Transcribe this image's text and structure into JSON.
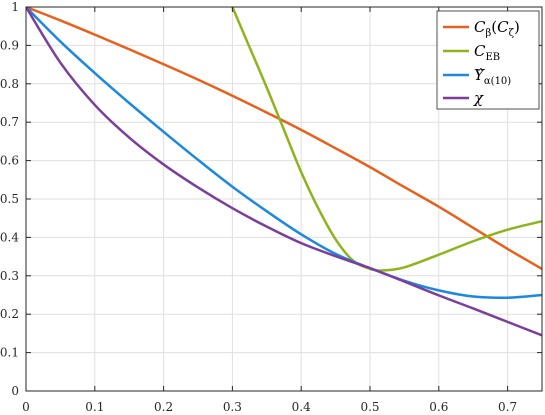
{
  "chart_data": {
    "type": "line",
    "title": "",
    "xlabel": "",
    "ylabel": "",
    "xlim": [
      0,
      0.75
    ],
    "ylim": [
      0,
      1
    ],
    "x_ticks": [
      "0",
      "0.1",
      "0.2",
      "0.3",
      "0.4",
      "0.5",
      "0.6",
      "0.7"
    ],
    "y_ticks": [
      "0",
      "0.1",
      "0.2",
      "0.3",
      "0.4",
      "0.5",
      "0.6",
      "0.7",
      "0.8",
      "0.9",
      "1"
    ],
    "grid": true,
    "legend_position": "top-right",
    "series": [
      {
        "name": "Cβ(Cζ)",
        "color": "#E8601C",
        "x": [
          0,
          0.05,
          0.1,
          0.15,
          0.2,
          0.25,
          0.3,
          0.35,
          0.4,
          0.45,
          0.5,
          0.55,
          0.6,
          0.65,
          0.7,
          0.75
        ],
        "y": [
          1.0,
          0.965,
          0.928,
          0.89,
          0.851,
          0.811,
          0.769,
          0.725,
          0.68,
          0.632,
          0.583,
          0.531,
          0.48,
          0.425,
          0.37,
          0.318
        ]
      },
      {
        "name": "CEB",
        "color": "#8DB41C",
        "x": [
          0.3,
          0.325,
          0.35,
          0.375,
          0.4,
          0.425,
          0.45,
          0.475,
          0.5,
          0.52,
          0.55,
          0.6,
          0.65,
          0.7,
          0.75
        ],
        "y": [
          1.0,
          0.895,
          0.79,
          0.68,
          0.57,
          0.475,
          0.395,
          0.34,
          0.318,
          0.314,
          0.322,
          0.355,
          0.39,
          0.42,
          0.442
        ]
      },
      {
        "name": "Υ̂α(10)",
        "color": "#1C88E0",
        "x": [
          0,
          0.05,
          0.1,
          0.15,
          0.2,
          0.25,
          0.3,
          0.35,
          0.4,
          0.45,
          0.5,
          0.55,
          0.6,
          0.65,
          0.7,
          0.75
        ],
        "y": [
          1.0,
          0.91,
          0.828,
          0.75,
          0.675,
          0.602,
          0.532,
          0.468,
          0.408,
          0.357,
          0.32,
          0.287,
          0.262,
          0.246,
          0.243,
          0.25
        ]
      },
      {
        "name": "χ",
        "color": "#7A3F9D",
        "x": [
          0,
          0.05,
          0.1,
          0.15,
          0.2,
          0.25,
          0.3,
          0.35,
          0.4,
          0.45,
          0.5,
          0.55,
          0.6,
          0.65,
          0.7,
          0.75
        ],
        "y": [
          1.0,
          0.855,
          0.745,
          0.66,
          0.59,
          0.53,
          0.476,
          0.428,
          0.385,
          0.351,
          0.32,
          0.285,
          0.249,
          0.215,
          0.18,
          0.145
        ]
      }
    ]
  }
}
